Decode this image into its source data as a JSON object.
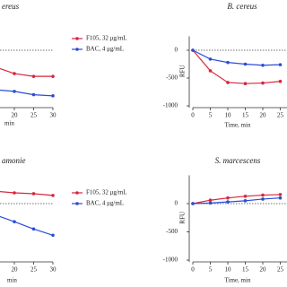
{
  "chart_data": [
    {
      "type": "line",
      "title": "ereus",
      "xlabel": "min",
      "x": [
        15,
        20,
        25,
        30
      ],
      "series": [
        {
          "name": "F105, 32 μg/mL",
          "color": "#d7263d",
          "values": [
            -300,
            -420,
            -470,
            -470
          ]
        },
        {
          "name": "BAC, 4 μg/mL",
          "color": "#2b4dd6",
          "values": [
            -710,
            -740,
            -800,
            -820
          ]
        }
      ],
      "xlim": [
        0,
        30
      ],
      "ylim": [
        -1000,
        250
      ],
      "xticks": [
        20,
        25,
        30
      ],
      "hline": 0,
      "legend": "upper right"
    },
    {
      "type": "line",
      "title": "B. cereus",
      "xlabel": "Time, min",
      "ylabel": "RFU",
      "x": [
        0,
        5,
        10,
        15,
        20,
        25
      ],
      "series": [
        {
          "color": "#d7263d",
          "values": [
            0,
            -370,
            -580,
            -600,
            -590,
            -560
          ]
        },
        {
          "color": "#2b4dd6",
          "values": [
            0,
            -160,
            -220,
            -250,
            -270,
            -260
          ]
        }
      ],
      "xlim": [
        0,
        30
      ],
      "ylim": [
        -1000,
        250
      ],
      "xticks": [
        0,
        5,
        10,
        15,
        20,
        25
      ],
      "yticks": [
        0,
        -500,
        -1000
      ],
      "hline": 0
    },
    {
      "type": "line",
      "title": "amonie",
      "xlabel": "min",
      "x": [
        15,
        20,
        25,
        30
      ],
      "series": [
        {
          "name": "F105, 32 μg/mL",
          "color": "#d7263d",
          "values": [
            220,
            190,
            175,
            145
          ]
        },
        {
          "name": "BAC, 4 μg/mL",
          "color": "#2b4dd6",
          "values": [
            -200,
            -320,
            -450,
            -560
          ]
        }
      ],
      "xlim": [
        0,
        30
      ],
      "ylim": [
        -1000,
        500
      ],
      "xticks": [
        20,
        25,
        30
      ],
      "hline": 0,
      "legend": "upper right"
    },
    {
      "type": "line",
      "title": "S. marcescens",
      "xlabel": "Time, min",
      "ylabel": "RFU",
      "x": [
        0,
        5,
        10,
        15,
        20,
        25
      ],
      "series": [
        {
          "color": "#d7263d",
          "values": [
            0,
            60,
            100,
            130,
            150,
            160
          ]
        },
        {
          "color": "#2b4dd6",
          "values": [
            0,
            10,
            30,
            50,
            80,
            100
          ]
        }
      ],
      "xlim": [
        0,
        30
      ],
      "ylim": [
        -1000,
        500
      ],
      "xticks": [
        0,
        5,
        10,
        15,
        20,
        25
      ],
      "yticks": [
        0,
        -500,
        -1000
      ],
      "hline": 0
    }
  ]
}
